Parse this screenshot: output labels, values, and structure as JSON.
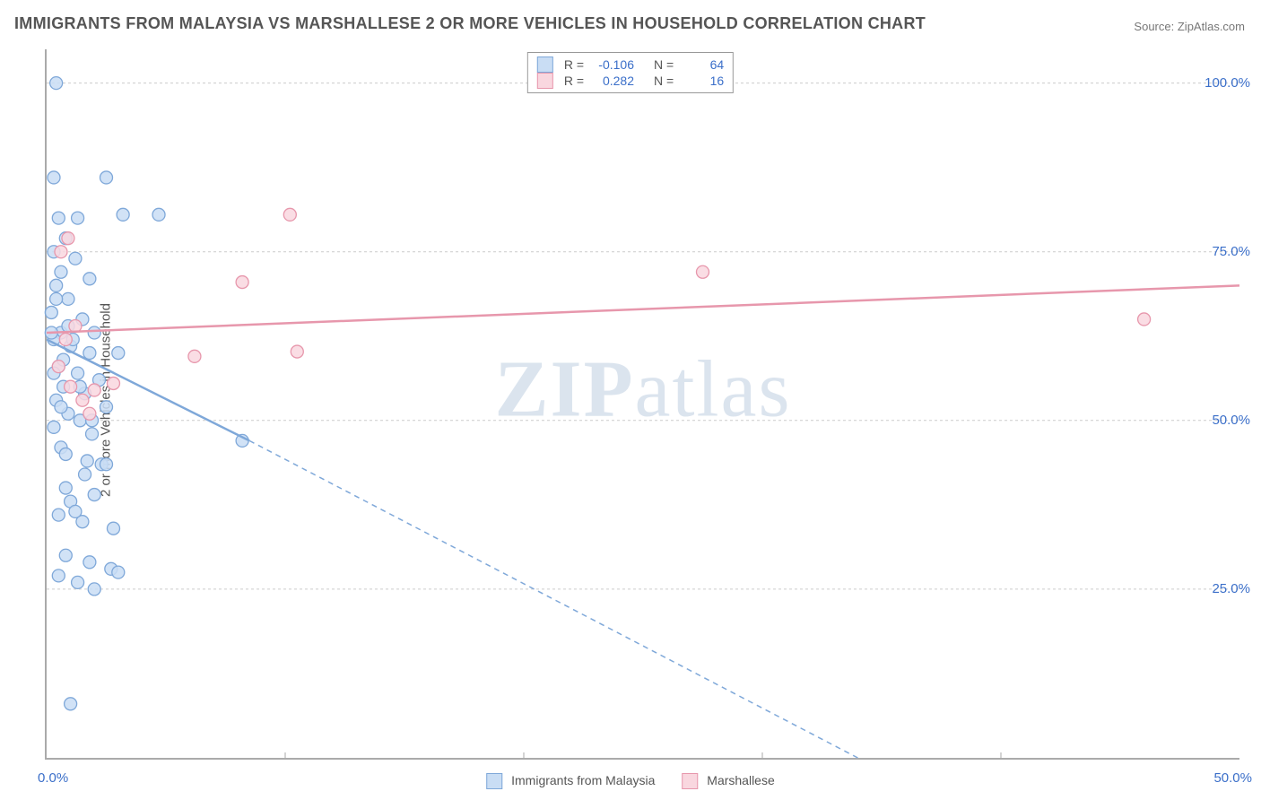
{
  "title": "IMMIGRANTS FROM MALAYSIA VS MARSHALLESE 2 OR MORE VEHICLES IN HOUSEHOLD CORRELATION CHART",
  "source_label": "Source:",
  "source_name": "ZipAtlas.com",
  "ylabel": "2 or more Vehicles in Household",
  "watermark_a": "ZIP",
  "watermark_b": "atlas",
  "chart": {
    "type": "scatter",
    "xlim": [
      0,
      50
    ],
    "ylim": [
      0,
      105
    ],
    "x_ticks": [
      0,
      10,
      20,
      30,
      40,
      50
    ],
    "x_tick_labels": [
      "0.0%",
      "",
      "",
      "",
      "",
      "50.0%"
    ],
    "y_ticks": [
      25,
      50,
      75,
      100
    ],
    "y_tick_labels": [
      "25.0%",
      "50.0%",
      "75.0%",
      "100.0%"
    ],
    "grid_color": "#cccccc",
    "background": "#ffffff",
    "series": [
      {
        "name": "Immigrants from Malaysia",
        "color_fill": "#c9ddf4",
        "color_stroke": "#7fa8d9",
        "marker_radius": 7,
        "r_value": "-0.106",
        "n_value": "64",
        "trend": {
          "x1": 0,
          "y1": 62,
          "x2": 8.5,
          "y2": 47,
          "solid": true
        },
        "trend_ext": {
          "x1": 8.5,
          "y1": 47,
          "x2": 34,
          "y2": 0,
          "dashed": true
        },
        "points": [
          [
            0.4,
            100
          ],
          [
            0.3,
            86
          ],
          [
            2.5,
            86
          ],
          [
            0.5,
            80
          ],
          [
            1.3,
            80
          ],
          [
            3.2,
            80.5
          ],
          [
            4.7,
            80.5
          ],
          [
            0.8,
            77
          ],
          [
            0.3,
            75
          ],
          [
            1.2,
            74
          ],
          [
            0.6,
            72
          ],
          [
            1.8,
            71
          ],
          [
            0.4,
            70
          ],
          [
            0.9,
            68
          ],
          [
            0.2,
            66
          ],
          [
            1.5,
            65
          ],
          [
            0.6,
            63
          ],
          [
            2.0,
            63
          ],
          [
            0.3,
            62
          ],
          [
            1.0,
            61
          ],
          [
            1.8,
            60
          ],
          [
            3.0,
            60
          ],
          [
            0.5,
            58
          ],
          [
            1.3,
            57
          ],
          [
            2.2,
            56
          ],
          [
            0.7,
            55
          ],
          [
            1.6,
            54
          ],
          [
            0.4,
            53
          ],
          [
            2.5,
            52
          ],
          [
            0.9,
            51
          ],
          [
            1.4,
            50
          ],
          [
            0.3,
            49
          ],
          [
            1.9,
            48
          ],
          [
            8.2,
            47
          ],
          [
            0.6,
            46
          ],
          [
            1.7,
            44
          ],
          [
            2.3,
            43.5
          ],
          [
            2.5,
            43.5
          ],
          [
            0.8,
            40
          ],
          [
            2.0,
            39
          ],
          [
            1.0,
            38
          ],
          [
            1.5,
            35
          ],
          [
            2.8,
            34
          ],
          [
            1.2,
            36.5
          ],
          [
            0.8,
            30
          ],
          [
            1.8,
            29
          ],
          [
            2.7,
            28
          ],
          [
            3.0,
            27.5
          ],
          [
            0.5,
            27
          ],
          [
            1.3,
            26
          ],
          [
            2.0,
            25
          ],
          [
            1.0,
            8
          ],
          [
            0.4,
            68
          ],
          [
            0.9,
            64
          ],
          [
            1.1,
            62
          ],
          [
            0.7,
            59
          ],
          [
            0.3,
            57
          ],
          [
            1.4,
            55
          ],
          [
            0.6,
            52
          ],
          [
            1.9,
            50
          ],
          [
            0.8,
            45
          ],
          [
            1.6,
            42
          ],
          [
            0.5,
            36
          ],
          [
            0.2,
            63
          ]
        ]
      },
      {
        "name": "Marshallese",
        "color_fill": "#f9d7df",
        "color_stroke": "#e797ac",
        "marker_radius": 7,
        "r_value": "0.282",
        "n_value": "16",
        "trend": {
          "x1": 0,
          "y1": 63,
          "x2": 50,
          "y2": 70,
          "solid": true
        },
        "points": [
          [
            10.2,
            80.5
          ],
          [
            0.9,
            77
          ],
          [
            0.6,
            75
          ],
          [
            27.5,
            72
          ],
          [
            46,
            65
          ],
          [
            1.2,
            64
          ],
          [
            8.2,
            70.5
          ],
          [
            0.8,
            62
          ],
          [
            10.5,
            60.2
          ],
          [
            6.2,
            59.5
          ],
          [
            0.5,
            58
          ],
          [
            2.8,
            55.5
          ],
          [
            1.0,
            55
          ],
          [
            2.0,
            54.5
          ],
          [
            1.5,
            53
          ],
          [
            1.8,
            51
          ]
        ]
      }
    ]
  },
  "legend_labels": {
    "r": "R =",
    "n": "N ="
  }
}
